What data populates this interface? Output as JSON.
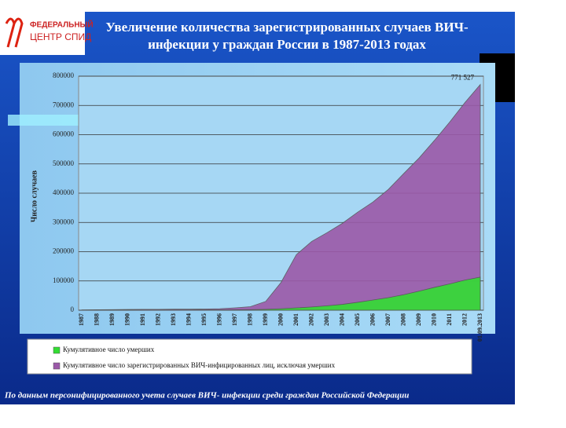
{
  "logo": {
    "line1": "ФЕДЕРАЛЬНЫЙ",
    "line2": "ЦЕНТР СПИД"
  },
  "footer": "По данным персонифицированного учета случаев ВИЧ- инфекции среди граждан Российской Федерации",
  "chart_data": {
    "type": "area",
    "title": [
      "Увеличение количества зарегистрированных случаев ВИЧ-",
      "инфекции у граждан России в 1987-2013 годах"
    ],
    "y_label": "Число случаев",
    "categories": [
      "1987",
      "1988",
      "1989",
      "1990",
      "1991",
      "1992",
      "1993",
      "1994",
      "1995",
      "1996",
      "1997",
      "1998",
      "1999",
      "2000",
      "2001",
      "2002",
      "2003",
      "2004",
      "2005",
      "2006",
      "2007",
      "2008",
      "2009",
      "2010",
      "2011",
      "2012",
      "01.09.2013"
    ],
    "ylim": [
      0,
      800000
    ],
    "yticks": [
      0,
      100000,
      200000,
      300000,
      400000,
      500000,
      600000,
      700000,
      800000
    ],
    "grid": true,
    "series": [
      {
        "name": "Кумулятивное число зарегистрированных ВИЧ-инфицированных лиц, исключая умерших",
        "color": "#9b59a8",
        "values": [
          1000,
          1500,
          2000,
          2500,
          3000,
          3000,
          3500,
          3500,
          4000,
          5000,
          8000,
          12000,
          30000,
          95000,
          190000,
          235000,
          265000,
          297000,
          335000,
          370000,
          413000,
          467000,
          520000,
          580000,
          643000,
          710000,
          771527
        ],
        "value_labels": [
          null,
          null,
          null,
          null,
          null,
          null,
          null,
          null,
          null,
          null,
          null,
          null,
          null,
          null,
          null,
          null,
          null,
          null,
          null,
          null,
          null,
          null,
          null,
          null,
          null,
          null,
          "771 527"
        ]
      },
      {
        "name": "Кумулятивное число умерших",
        "color": "#33dd33",
        "values": [
          500,
          600,
          700,
          800,
          900,
          1000,
          1000,
          1100,
          1200,
          1300,
          1500,
          2000,
          3000,
          5000,
          8000,
          11000,
          15000,
          20000,
          27000,
          35000,
          43000,
          53000,
          65000,
          78000,
          90000,
          103000,
          113000
        ]
      }
    ]
  }
}
